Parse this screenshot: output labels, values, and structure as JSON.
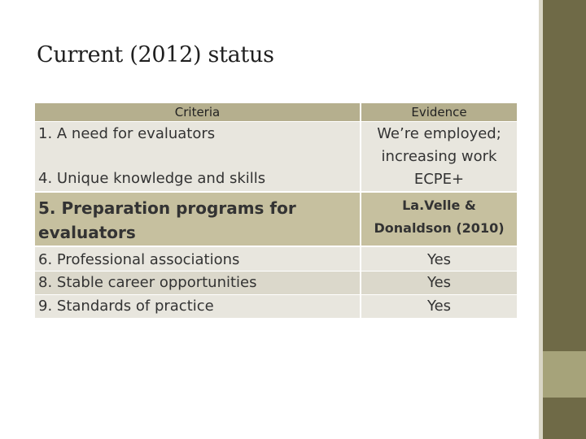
{
  "slide": {
    "title": "Current (2012) status"
  },
  "table": {
    "headers": {
      "criteria": "Criteria",
      "evidence": "Evidence"
    },
    "rows": [
      {
        "criteria": "1. A need for evaluators",
        "evidence_lines": [
          "We’re employed;",
          "increasing work"
        ]
      },
      {
        "criteria": "4. Unique knowledge and skills",
        "evidence": "ECPE+"
      },
      {
        "criteria_lines": [
          "5. Preparation programs for",
          "evaluators"
        ],
        "evidence_lines": [
          "La.Velle &",
          "Donaldson (2010)"
        ]
      },
      {
        "criteria": "6. Professional associations",
        "evidence": "Yes"
      },
      {
        "criteria": "8. Stable career opportunities",
        "evidence": "Yes"
      },
      {
        "criteria": "9. Standards of practice",
        "evidence": "Yes"
      }
    ]
  },
  "colors": {
    "header_bg": "#b5af8e",
    "row_light": "#e8e6de",
    "row_mid": "#dbd8cb",
    "row_gold": "#c6c09f",
    "sidebar_dark": "#6f6a47",
    "sidebar_light": "#a6a37a"
  }
}
